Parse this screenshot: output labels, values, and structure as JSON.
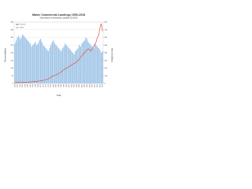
{
  "chart_data": {
    "type": "bar-line",
    "title": "Maine Commercial Landings 1950-2018",
    "subtitle": "Data based on preliminary, updated 3/1/2019",
    "x_label": "Year",
    "y_label": "Pounds (millions)",
    "y2_label": "Value ($ millions)",
    "categories": [
      "1950",
      null,
      "1952",
      null,
      "1954",
      null,
      "1956",
      null,
      "1958",
      null,
      "1960",
      null,
      "1962",
      null,
      "1964",
      null,
      "1966",
      null,
      "1968",
      null,
      "1970",
      null,
      "1972",
      null,
      "1974",
      null,
      "1976",
      null,
      "1978",
      null,
      "1980",
      null,
      "1982",
      null,
      "1984",
      null,
      "1986",
      null,
      "1988",
      null,
      "1990",
      null,
      "1992",
      null,
      "1994",
      null,
      "1996",
      null,
      "1998",
      null,
      "2000",
      null,
      "2002",
      null,
      "2004",
      null,
      "2006",
      null,
      "2008",
      null,
      "2010",
      null,
      "2012",
      null,
      "2014",
      null,
      "2016",
      null,
      "2018"
    ],
    "series": [
      {
        "name": "Pounds",
        "color": "#9dc3e6",
        "values": [
          260,
          280,
          300,
          310,
          290,
          300,
          320,
          310,
          300,
          290,
          280,
          270,
          260,
          240,
          250,
          260,
          270,
          250,
          260,
          280,
          290,
          270,
          250,
          240,
          230,
          220,
          210,
          230,
          250,
          270,
          280,
          260,
          250,
          240,
          230,
          220,
          210,
          230,
          240,
          260,
          250,
          240,
          230,
          220,
          210,
          200,
          190,
          210,
          220,
          230,
          250,
          240,
          260,
          270,
          280,
          300,
          290,
          270,
          260,
          250,
          240,
          230,
          260,
          250,
          240,
          230,
          220,
          200,
          210
        ]
      },
      {
        "name": "Value",
        "color": "#e03c31",
        "axis": "y2",
        "values": [
          10,
          11,
          12,
          12,
          13,
          14,
          15,
          15,
          16,
          17,
          18,
          19,
          20,
          21,
          22,
          24,
          26,
          28,
          30,
          32,
          35,
          38,
          42,
          46,
          50,
          55,
          60,
          70,
          80,
          95,
          100,
          105,
          110,
          120,
          130,
          140,
          150,
          165,
          180,
          190,
          200,
          210,
          220,
          230,
          240,
          250,
          260,
          270,
          280,
          300,
          320,
          340,
          360,
          380,
          400,
          420,
          440,
          450,
          440,
          420,
          450,
          480,
          500,
          540,
          600,
          620,
          720,
          780,
          680
        ]
      }
    ],
    "ylim": [
      0,
      400
    ],
    "yticks": [
      0,
      50,
      100,
      150,
      200,
      250,
      300,
      350,
      400
    ],
    "y2lim": [
      0,
      800
    ],
    "y2ticks": [
      0,
      100,
      200,
      300,
      400,
      500,
      600,
      700,
      800
    ],
    "legend": "upper left"
  }
}
